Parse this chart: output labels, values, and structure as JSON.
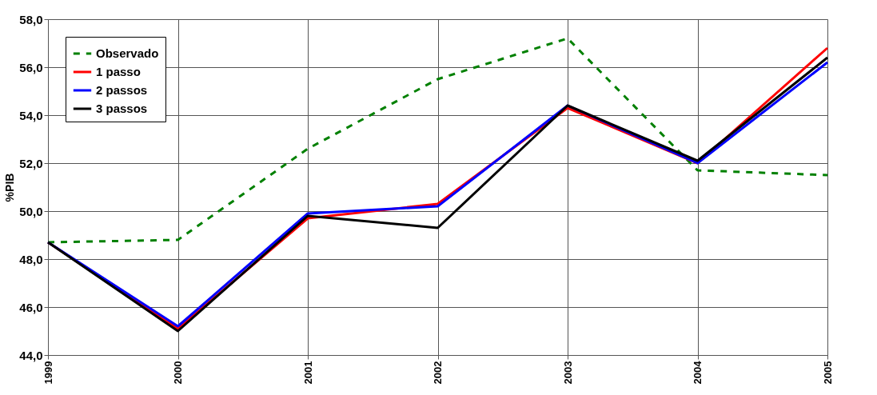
{
  "chart_data": {
    "type": "line",
    "ylabel": "%PIB",
    "categories": [
      "1999",
      "2000",
      "2001",
      "2002",
      "2003",
      "2004",
      "2005"
    ],
    "ylim": [
      44,
      58
    ],
    "yticks": [
      {
        "value": 44,
        "label": "44,0"
      },
      {
        "value": 46,
        "label": "46,0"
      },
      {
        "value": 48,
        "label": "48,0"
      },
      {
        "value": 50,
        "label": "50,0"
      },
      {
        "value": 52,
        "label": "52,0"
      },
      {
        "value": 54,
        "label": "54,0"
      },
      {
        "value": 56,
        "label": "56,0"
      },
      {
        "value": 58,
        "label": "58,0"
      }
    ],
    "grid": true,
    "legend": "top left",
    "marker": "none",
    "series": [
      {
        "name": "Observado",
        "color": "#008000",
        "line_style": "dashed",
        "values": [
          48.7,
          48.8,
          52.6,
          55.5,
          57.2,
          51.7,
          51.5
        ]
      },
      {
        "name": "1 passo",
        "color": "#ff0000",
        "line_style": "solid",
        "values": [
          48.7,
          45.1,
          49.7,
          50.3,
          54.3,
          52.0,
          56.8
        ]
      },
      {
        "name": "2 passos",
        "color": "#0000ff",
        "line_style": "solid",
        "values": [
          48.7,
          45.2,
          49.9,
          50.2,
          54.4,
          52.0,
          56.2
        ]
      },
      {
        "name": "3 passos",
        "color": "#000000",
        "line_style": "solid",
        "values": [
          48.7,
          45.0,
          49.8,
          49.3,
          54.4,
          52.1,
          56.4
        ]
      }
    ]
  }
}
